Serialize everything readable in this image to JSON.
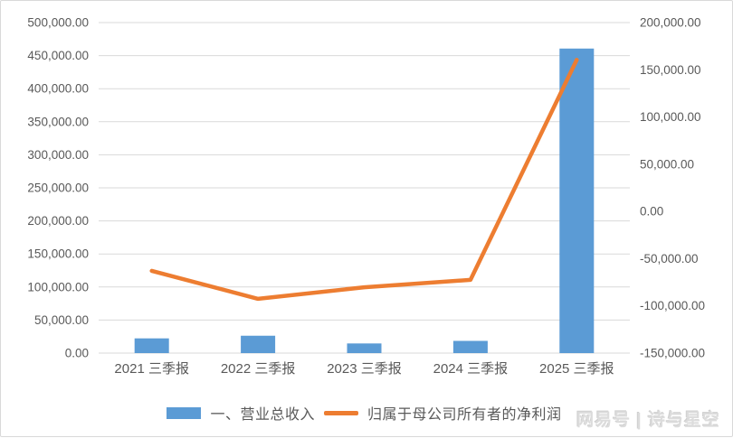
{
  "chart_data": {
    "type": "combo",
    "title": "",
    "categories": [
      "2021 三季报",
      "2022 三季报",
      "2023 三季报",
      "2024 三季报",
      "2025 三季报"
    ],
    "series": [
      {
        "name": "一、营业总收入",
        "type": "bar",
        "axis": "left",
        "color": "#5B9BD5",
        "values": [
          22300,
          26300,
          14600,
          18500,
          460700
        ]
      },
      {
        "name": "归属于母公司所有者的净利润",
        "type": "line",
        "axis": "right",
        "color": "#ED7D31",
        "values": [
          -62900,
          -92500,
          -80300,
          -72400,
          160500
        ]
      }
    ],
    "left_axis": {
      "min": 0,
      "max": 500000,
      "step": 50000,
      "ticks": [
        "500,000.00",
        "450,000.00",
        "400,000.00",
        "350,000.00",
        "300,000.00",
        "250,000.00",
        "200,000.00",
        "150,000.00",
        "100,000.00",
        "50,000.00",
        "0.00"
      ]
    },
    "right_axis": {
      "min": -150000,
      "max": 200000,
      "step": 50000,
      "ticks": [
        "200,000.00",
        "150,000.00",
        "100,000.00",
        "50,000.00",
        "0.00",
        "-50,000.00",
        "-100,000.00",
        "-150,000.00"
      ]
    },
    "grid": true,
    "gridline_color": "#D9D9D9",
    "axis_text_color": "#595959",
    "legend_position": "bottom"
  },
  "watermark": {
    "text": "网易号 | 诗与星空"
  }
}
